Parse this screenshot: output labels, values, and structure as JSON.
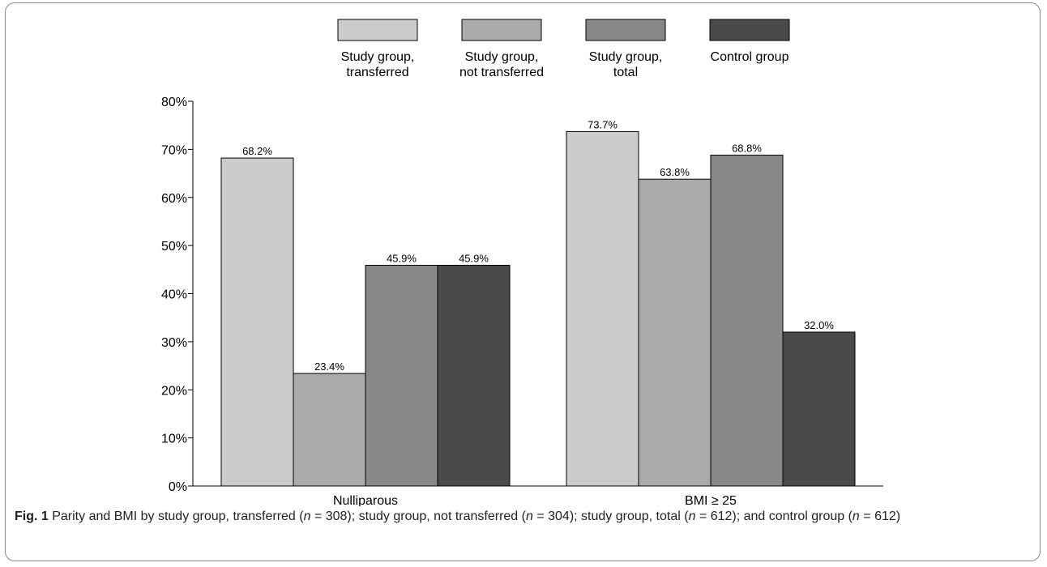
{
  "chart_data": {
    "type": "bar",
    "categories": [
      "Nulliparous",
      "BMI ≥ 25"
    ],
    "series": [
      {
        "name": "Study group, transferred",
        "name_lines": [
          "Study group,",
          "transferred"
        ],
        "values": [
          68.2,
          73.7
        ],
        "labels": [
          "68.2%",
          "73.7%"
        ],
        "color": "#cccccc"
      },
      {
        "name": "Study group, not transferred",
        "name_lines": [
          "Study group,",
          "not transferred"
        ],
        "values": [
          23.4,
          63.8
        ],
        "labels": [
          "23.4%",
          "63.8%"
        ],
        "color": "#aaaaaa"
      },
      {
        "name": "Study group, total",
        "name_lines": [
          "Study group,",
          "total"
        ],
        "values": [
          45.9,
          68.8
        ],
        "labels": [
          "45.9%",
          "68.8%"
        ],
        "color": "#888888"
      },
      {
        "name": "Control group",
        "name_lines": [
          "Control group"
        ],
        "values": [
          45.9,
          32.0
        ],
        "labels": [
          "45.9%",
          "32.0%"
        ],
        "color": "#4a4a4a"
      }
    ],
    "ylim": [
      0,
      80
    ],
    "yticks": [
      0,
      10,
      20,
      30,
      40,
      50,
      60,
      70,
      80
    ],
    "ytick_labels": [
      "0%",
      "10%",
      "20%",
      "30%",
      "40%",
      "50%",
      "60%",
      "70%",
      "80%"
    ],
    "legend_position": "top",
    "grid": false
  },
  "caption": {
    "fig_label": "Fig. 1",
    "parts": [
      {
        "t": " Parity and BMI by study group, transferred ("
      },
      {
        "t": "n",
        "i": true
      },
      {
        "t": " = 308); study group, not transferred ("
      },
      {
        "t": "n",
        "i": true
      },
      {
        "t": " = 304); study group, total ("
      },
      {
        "t": "n",
        "i": true
      },
      {
        "t": " = 612); and control group ("
      },
      {
        "t": "n",
        "i": true
      },
      {
        "t": " = 612)"
      }
    ]
  }
}
